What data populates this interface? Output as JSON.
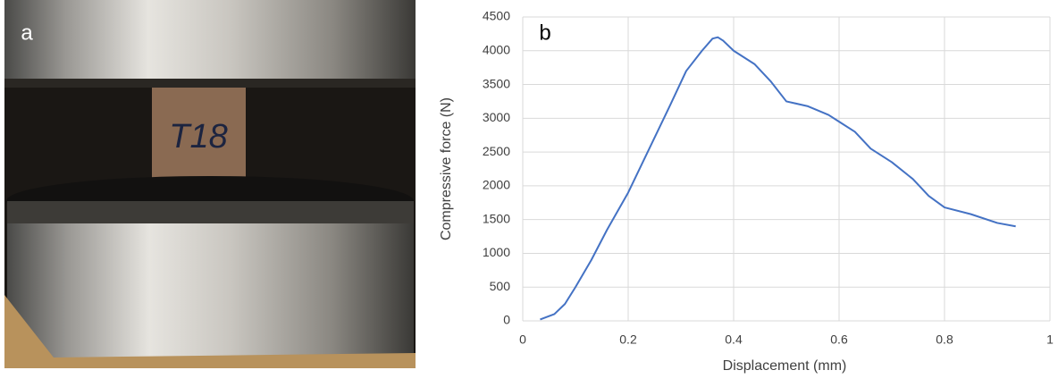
{
  "photo": {
    "label": "a",
    "specimen": "T18"
  },
  "chart_data": {
    "type": "line",
    "panel_label": "b",
    "xlabel": "Displacement (mm)",
    "ylabel": "Compressive force (N)",
    "x": [
      0.033,
      0.06,
      0.08,
      0.1,
      0.13,
      0.16,
      0.2,
      0.24,
      0.28,
      0.31,
      0.34,
      0.36,
      0.37,
      0.38,
      0.4,
      0.44,
      0.47,
      0.5,
      0.54,
      0.58,
      0.6,
      0.63,
      0.66,
      0.7,
      0.74,
      0.77,
      0.8,
      0.85,
      0.9,
      0.935
    ],
    "series": [
      {
        "color": "#4472c4",
        "values": [
          20,
          100,
          250,
          500,
          900,
          1350,
          1900,
          2550,
          3200,
          3700,
          4000,
          4180,
          4200,
          4150,
          4000,
          3800,
          3550,
          3250,
          3180,
          3050,
          2950,
          2800,
          2550,
          2350,
          2100,
          1850,
          1680,
          1580,
          1450,
          1400
        ]
      }
    ],
    "xlim": [
      0,
      1
    ],
    "xticks": [
      0,
      0.2,
      0.4,
      0.6,
      0.8,
      1
    ],
    "ylim": [
      0,
      4500
    ],
    "yticks": [
      0,
      500,
      1000,
      1500,
      2000,
      2500,
      3000,
      3500,
      4000,
      4500
    ],
    "grid": true
  }
}
